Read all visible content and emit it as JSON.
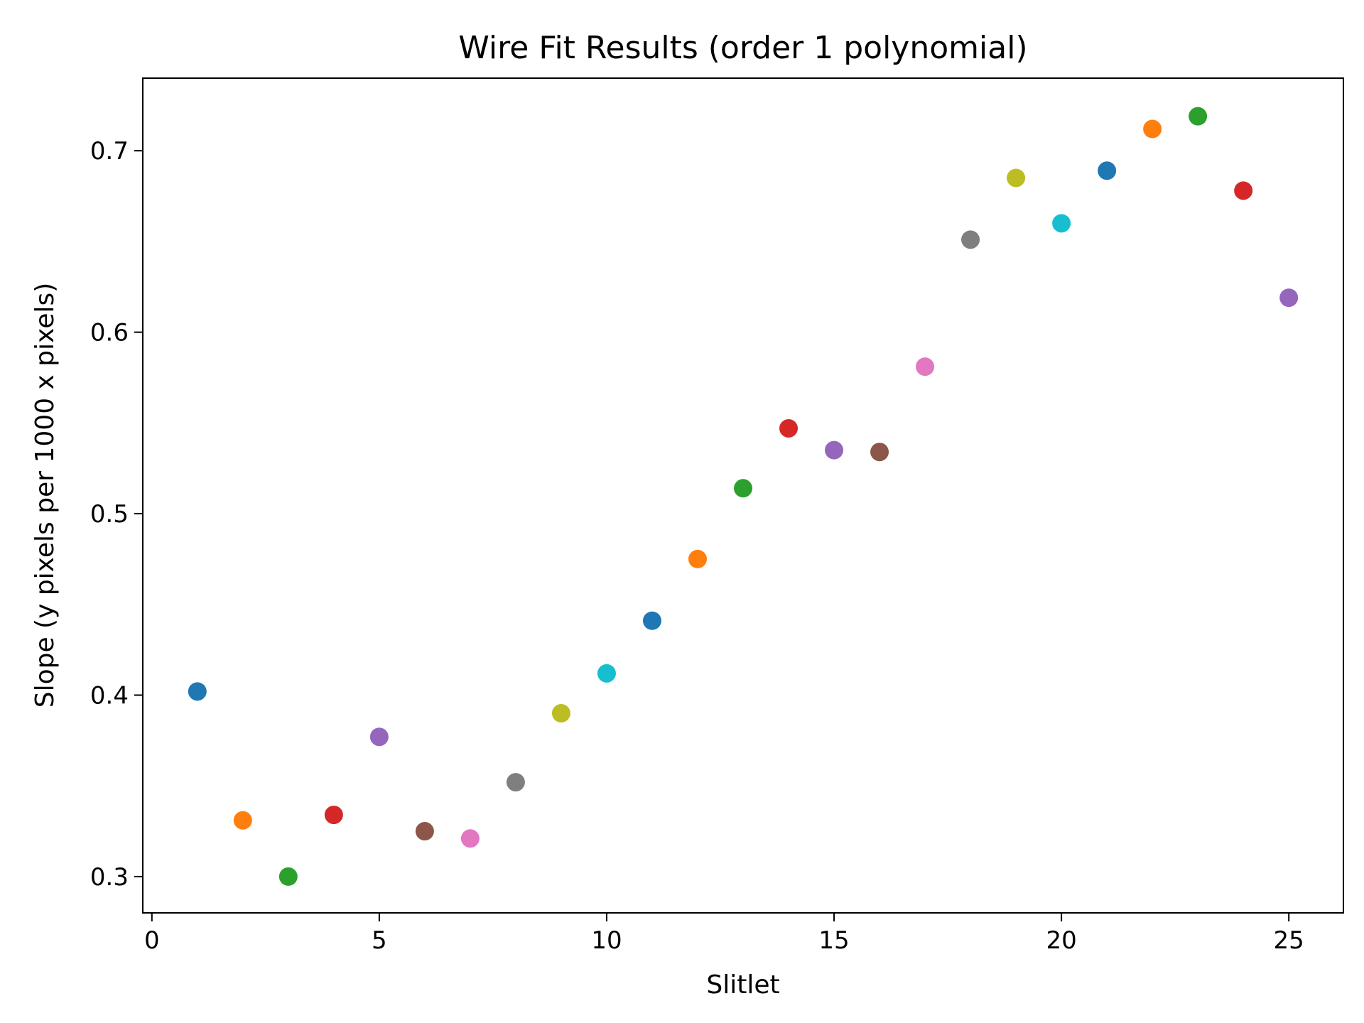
{
  "chart_data": {
    "type": "scatter",
    "title": "Wire Fit Results (order 1 polynomial)",
    "xlabel": "Slitlet",
    "ylabel": "Slope (y pixels per 1000 x pixels)",
    "xlim": [
      -0.2,
      26.2
    ],
    "ylim": [
      0.28,
      0.74
    ],
    "xticks": [
      0,
      5,
      10,
      15,
      20,
      25
    ],
    "yticks": [
      0.3,
      0.4,
      0.5,
      0.6,
      0.7
    ],
    "xtick_labels": [
      "0",
      "5",
      "10",
      "15",
      "20",
      "25"
    ],
    "ytick_labels": [
      "0.3",
      "0.4",
      "0.5",
      "0.6",
      "0.7"
    ],
    "grid": false,
    "legend": "none",
    "points": [
      {
        "x": 1,
        "y": 0.402,
        "color": "#1f77b4"
      },
      {
        "x": 2,
        "y": 0.331,
        "color": "#ff7f0e"
      },
      {
        "x": 3,
        "y": 0.3,
        "color": "#2ca02c"
      },
      {
        "x": 4,
        "y": 0.334,
        "color": "#d62728"
      },
      {
        "x": 5,
        "y": 0.377,
        "color": "#9467bd"
      },
      {
        "x": 6,
        "y": 0.325,
        "color": "#8c564b"
      },
      {
        "x": 7,
        "y": 0.321,
        "color": "#e377c2"
      },
      {
        "x": 8,
        "y": 0.352,
        "color": "#7f7f7f"
      },
      {
        "x": 9,
        "y": 0.39,
        "color": "#bcbd22"
      },
      {
        "x": 10,
        "y": 0.412,
        "color": "#17becf"
      },
      {
        "x": 11,
        "y": 0.441,
        "color": "#1f77b4"
      },
      {
        "x": 12,
        "y": 0.475,
        "color": "#ff7f0e"
      },
      {
        "x": 13,
        "y": 0.514,
        "color": "#2ca02c"
      },
      {
        "x": 14,
        "y": 0.547,
        "color": "#d62728"
      },
      {
        "x": 15,
        "y": 0.535,
        "color": "#9467bd"
      },
      {
        "x": 16,
        "y": 0.534,
        "color": "#8c564b"
      },
      {
        "x": 17,
        "y": 0.581,
        "color": "#e377c2"
      },
      {
        "x": 18,
        "y": 0.651,
        "color": "#7f7f7f"
      },
      {
        "x": 19,
        "y": 0.685,
        "color": "#bcbd22"
      },
      {
        "x": 20,
        "y": 0.66,
        "color": "#17becf"
      },
      {
        "x": 21,
        "y": 0.689,
        "color": "#1f77b4"
      },
      {
        "x": 22,
        "y": 0.712,
        "color": "#ff7f0e"
      },
      {
        "x": 23,
        "y": 0.719,
        "color": "#2ca02c"
      },
      {
        "x": 24,
        "y": 0.678,
        "color": "#d62728"
      },
      {
        "x": 25,
        "y": 0.619,
        "color": "#9467bd"
      }
    ]
  }
}
